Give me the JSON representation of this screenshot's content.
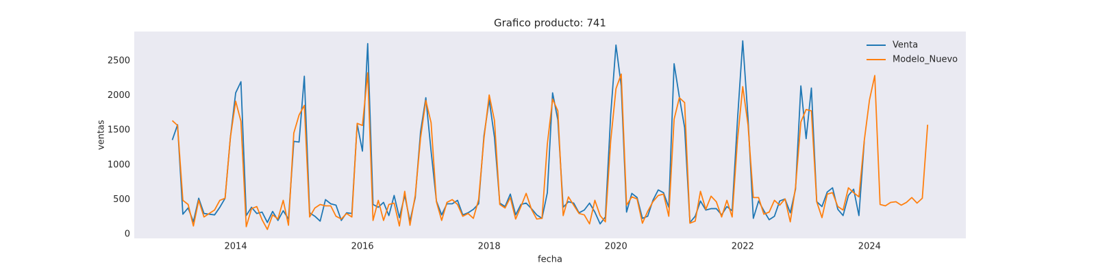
{
  "chart_data": {
    "type": "line",
    "title": "Grafico producto: 741",
    "xlabel": "fecha",
    "ylabel": "ventas",
    "x": [
      2013,
      2013.083,
      2013.167,
      2013.25,
      2013.333,
      2013.417,
      2013.5,
      2013.583,
      2013.667,
      2013.75,
      2013.833,
      2013.917,
      2014,
      2014.083,
      2014.167,
      2014.25,
      2014.333,
      2014.417,
      2014.5,
      2014.583,
      2014.667,
      2014.75,
      2014.833,
      2014.917,
      2015,
      2015.083,
      2015.167,
      2015.25,
      2015.333,
      2015.417,
      2015.5,
      2015.583,
      2015.667,
      2015.75,
      2015.833,
      2015.917,
      2016,
      2016.083,
      2016.167,
      2016.25,
      2016.333,
      2016.417,
      2016.5,
      2016.583,
      2016.667,
      2016.75,
      2016.833,
      2016.917,
      2017,
      2017.083,
      2017.167,
      2017.25,
      2017.333,
      2017.417,
      2017.5,
      2017.583,
      2017.667,
      2017.75,
      2017.833,
      2017.917,
      2018,
      2018.083,
      2018.167,
      2018.25,
      2018.333,
      2018.417,
      2018.5,
      2018.583,
      2018.667,
      2018.75,
      2018.833,
      2018.917,
      2019,
      2019.083,
      2019.167,
      2019.25,
      2019.333,
      2019.417,
      2019.5,
      2019.583,
      2019.667,
      2019.75,
      2019.833,
      2019.917,
      2020,
      2020.083,
      2020.167,
      2020.25,
      2020.333,
      2020.417,
      2020.5,
      2020.583,
      2020.667,
      2020.75,
      2020.833,
      2020.917,
      2021,
      2021.083,
      2021.167,
      2021.25,
      2021.333,
      2021.417,
      2021.5,
      2021.583,
      2021.667,
      2021.75,
      2021.833,
      2021.917,
      2022,
      2022.083,
      2022.167,
      2022.25,
      2022.333,
      2022.417,
      2022.5,
      2022.583,
      2022.667,
      2022.75,
      2022.833,
      2022.917,
      2023,
      2023.083,
      2023.167,
      2023.25,
      2023.333,
      2023.417,
      2023.5,
      2023.583,
      2023.667,
      2023.75,
      2023.833,
      2023.917,
      2024,
      2024.083,
      2024.167,
      2024.25,
      2024.333,
      2024.417,
      2024.5,
      2024.583,
      2024.667,
      2024.75,
      2024.833,
      2024.917
    ],
    "series": [
      {
        "name": "Venta",
        "color": "#1f77b4",
        "values": [
          1360,
          1580,
          290,
          380,
          180,
          520,
          300,
          290,
          280,
          390,
          520,
          1400,
          2040,
          2200,
          270,
          390,
          300,
          320,
          170,
          330,
          200,
          340,
          220,
          1340,
          1330,
          2280,
          310,
          260,
          190,
          500,
          440,
          420,
          200,
          310,
          300,
          1590,
          1200,
          2750,
          430,
          390,
          460,
          270,
          560,
          240,
          560,
          190,
          530,
          1480,
          1970,
          1200,
          480,
          280,
          440,
          440,
          490,
          280,
          310,
          360,
          440,
          1420,
          1940,
          1400,
          450,
          400,
          580,
          280,
          430,
          450,
          370,
          280,
          230,
          600,
          2040,
          1650,
          390,
          470,
          450,
          310,
          350,
          450,
          320,
          150,
          250,
          1730,
          2730,
          2140,
          320,
          590,
          530,
          230,
          260,
          490,
          640,
          600,
          390,
          2460,
          1980,
          1540,
          170,
          260,
          480,
          350,
          370,
          370,
          280,
          400,
          340,
          1650,
          2790,
          1680,
          230,
          480,
          340,
          210,
          260,
          480,
          510,
          310,
          650,
          2140,
          1380,
          2110,
          470,
          400,
          610,
          670,
          360,
          270,
          560,
          650,
          270,
          1340,
          null,
          null,
          null,
          null,
          null,
          null,
          null,
          null,
          null,
          null,
          null,
          null
        ]
      },
      {
        "name": "Modelo_Nuevo",
        "color": "#ff7f0e",
        "values": [
          1640,
          1570,
          490,
          430,
          120,
          490,
          250,
          300,
          350,
          490,
          520,
          1400,
          1920,
          1630,
          110,
          370,
          400,
          210,
          70,
          280,
          220,
          490,
          130,
          1460,
          1720,
          1860,
          250,
          380,
          430,
          410,
          410,
          260,
          220,
          300,
          250,
          1600,
          1570,
          2330,
          200,
          490,
          200,
          430,
          450,
          120,
          620,
          130,
          560,
          1390,
          1930,
          1610,
          470,
          200,
          460,
          500,
          430,
          260,
          300,
          230,
          500,
          1380,
          2010,
          1640,
          430,
          380,
          530,
          220,
          400,
          590,
          360,
          220,
          230,
          1300,
          1950,
          1780,
          270,
          540,
          420,
          300,
          280,
          150,
          490,
          270,
          180,
          1350,
          2100,
          2310,
          420,
          540,
          510,
          160,
          330,
          470,
          560,
          580,
          260,
          1660,
          1970,
          1900,
          160,
          190,
          620,
          360,
          550,
          470,
          250,
          490,
          250,
          1360,
          2130,
          1580,
          530,
          530,
          290,
          320,
          490,
          420,
          510,
          180,
          680,
          1620,
          1800,
          1780,
          470,
          240,
          580,
          600,
          400,
          350,
          670,
          600,
          540,
          1350,
          1940,
          2290,
          430,
          410,
          460,
          470,
          420,
          460,
          530,
          450,
          520,
          1580
        ]
      }
    ],
    "xlim": [
      2012.4,
      2025.52
    ],
    "xticks": [
      2014,
      2016,
      2018,
      2020,
      2022,
      2024
    ],
    "ylim": [
      -59,
      2925
    ],
    "yticks": [
      0,
      500,
      1000,
      1500,
      2000,
      2500
    ],
    "grid": false,
    "legend": "upper right"
  }
}
